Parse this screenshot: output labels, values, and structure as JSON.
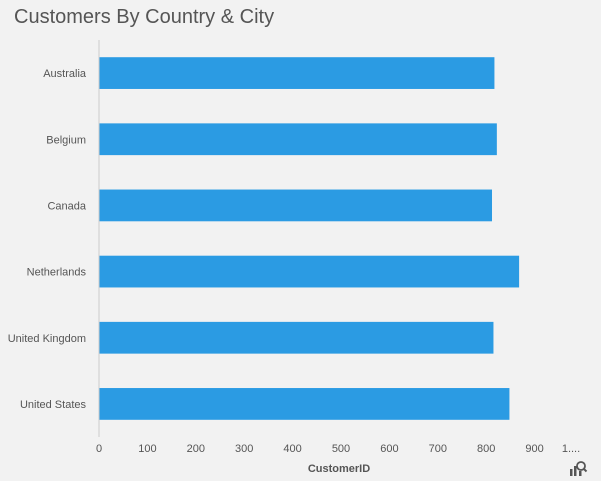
{
  "chart_data": {
    "type": "bar",
    "orientation": "horizontal",
    "title": "Customers By Country & City",
    "xlabel": "CustomerID",
    "ylabel": "",
    "categories": [
      "Australia",
      "Belgium",
      "Canada",
      "Netherlands",
      "United Kingdom",
      "United States"
    ],
    "values": [
      817,
      822,
      812,
      868,
      815,
      848
    ],
    "xlim": [
      0,
      1000
    ],
    "ticks": [
      "0",
      "100",
      "200",
      "300",
      "400",
      "500",
      "600",
      "700",
      "800",
      "900",
      "1...."
    ],
    "tick_values": [
      0,
      100,
      200,
      300,
      400,
      500,
      600,
      700,
      800,
      900,
      1000
    ],
    "grid": false,
    "bar_color": "#2b9be3"
  },
  "toolbar": {
    "drill_icon": "bar-chart-search-icon"
  }
}
